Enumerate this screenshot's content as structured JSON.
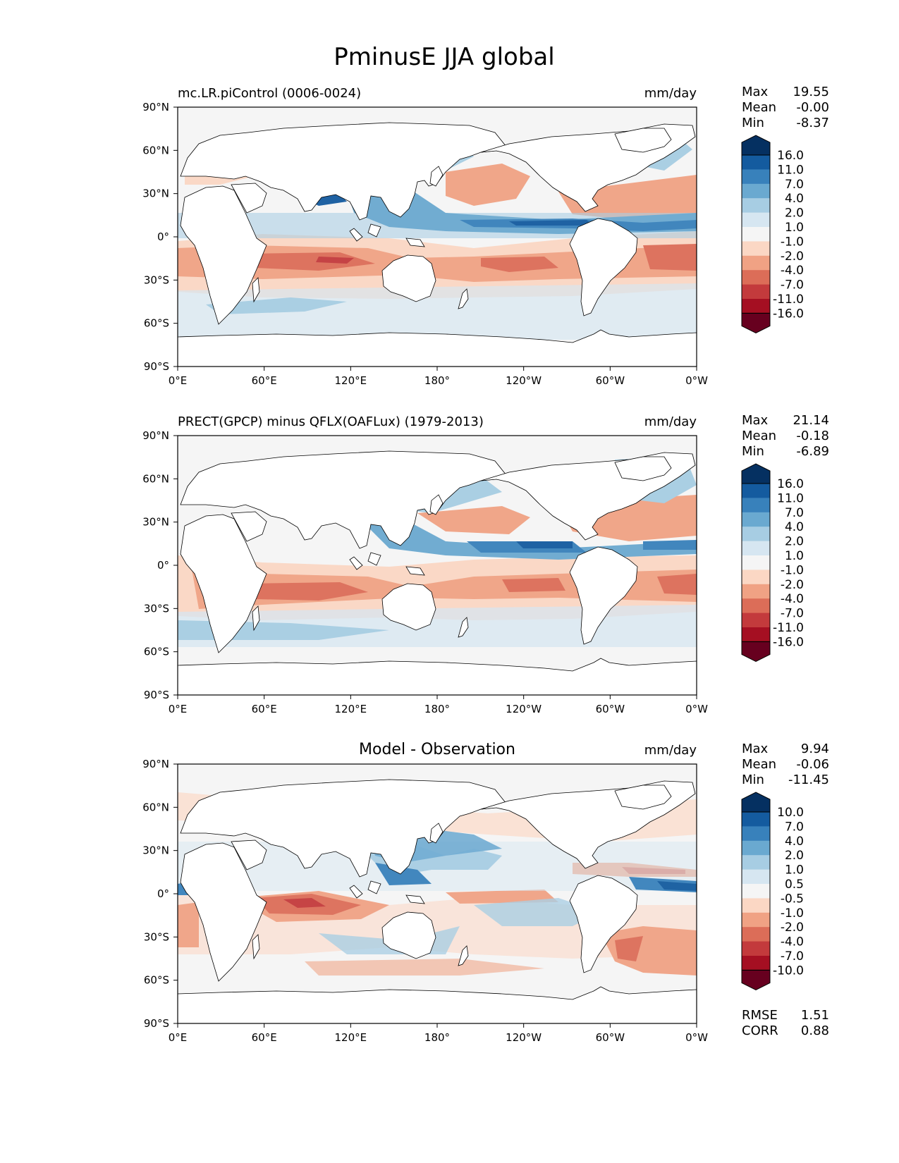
{
  "figure": {
    "title": "PminusE JJA global"
  },
  "lon_ticks": [
    "0°E",
    "60°E",
    "120°E",
    "180°",
    "120°W",
    "60°W",
    "0°W"
  ],
  "lat_ticks": [
    "90°N",
    "60°N",
    "30°N",
    "0°",
    "30°S",
    "60°S",
    "90°S"
  ],
  "colors": {
    "levels_main": [
      "#67001f",
      "#a50f22",
      "#c33a3c",
      "#dc6d58",
      "#f0a284",
      "#fbd7c4",
      "#f5f5f5",
      "#d6e6f1",
      "#a7cde3",
      "#6aa9d0",
      "#3881bb",
      "#145b9f",
      "#053061"
    ],
    "land": "#ffffff",
    "ocean_missing": "#f5f5f5",
    "coast": "#000000"
  },
  "chart_data": [
    {
      "type": "heatmap",
      "title": "mc.LR.piControl (0006-0024)",
      "units": "mm/day",
      "stats": {
        "max_label": "Max",
        "max": "19.55",
        "mean_label": "Mean",
        "mean": "-0.00",
        "min_label": "Min",
        "min": "-8.37"
      },
      "colorbar_levels": [
        "16.0",
        "11.0",
        "7.0",
        "4.0",
        "2.0",
        "1.0",
        "-1.0",
        "-2.0",
        "-4.0",
        "-7.0",
        "-11.0",
        "-16.0"
      ],
      "xlim": [
        0,
        360
      ],
      "ylim": [
        -90,
        90
      ]
    },
    {
      "type": "heatmap",
      "title": "PRECT(GPCP) minus QFLX(OAFLux) (1979-2013)",
      "units": "mm/day",
      "stats": {
        "max_label": "Max",
        "max": "21.14",
        "mean_label": "Mean",
        "mean": "-0.18",
        "min_label": "Min",
        "min": "-6.89"
      },
      "colorbar_levels": [
        "16.0",
        "11.0",
        "7.0",
        "4.0",
        "2.0",
        "1.0",
        "-1.0",
        "-2.0",
        "-4.0",
        "-7.0",
        "-11.0",
        "-16.0"
      ],
      "xlim": [
        0,
        360
      ],
      "ylim": [
        -90,
        90
      ]
    },
    {
      "type": "heatmap",
      "title": "Model - Observation",
      "units": "mm/day",
      "stats": {
        "max_label": "Max",
        "max": "9.94",
        "mean_label": "Mean",
        "mean": "-0.06",
        "min_label": "Min",
        "min": "-11.45"
      },
      "colorbar_levels": [
        "10.0",
        "7.0",
        "4.0",
        "2.0",
        "1.0",
        "0.5",
        "-0.5",
        "-1.0",
        "-2.0",
        "-4.0",
        "-7.0",
        "-10.0"
      ],
      "extra_stats": {
        "rmse_label": "RMSE",
        "rmse": "1.51",
        "corr_label": "CORR",
        "corr": "0.88"
      },
      "xlim": [
        0,
        360
      ],
      "ylim": [
        -90,
        90
      ]
    }
  ]
}
